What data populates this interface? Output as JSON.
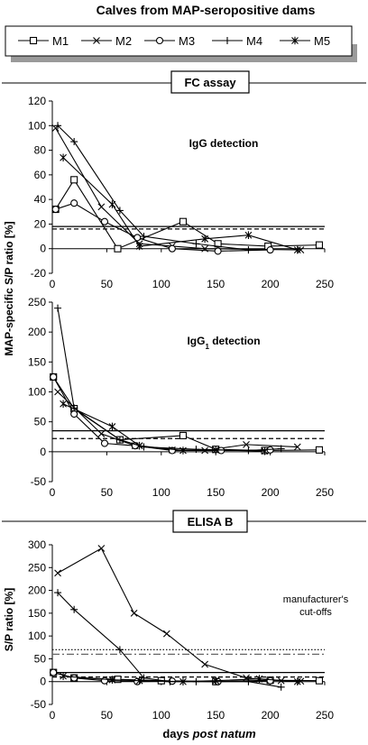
{
  "figure_title": "Calves from MAP-seropositive dams",
  "legend": {
    "entries": [
      {
        "name": "M1",
        "marker": "square"
      },
      {
        "name": "M2",
        "marker": "x"
      },
      {
        "name": "M3",
        "marker": "circle"
      },
      {
        "name": "M4",
        "marker": "plus"
      },
      {
        "name": "M5",
        "marker": "star"
      }
    ]
  },
  "sections": {
    "fc": "FC assay",
    "elisa": "ELISA B"
  },
  "ylabel_shared": "MAP-specific S/P ratio [%]",
  "xlabel_prefix": "days ",
  "xlabel_italic": "post natum",
  "annotation_cutoffs_line1": "manufacturer's",
  "annotation_cutoffs_line2": "cut-offs",
  "chart_data": [
    {
      "type": "line",
      "title": "IgG detection",
      "xlabel": "",
      "ylabel": "",
      "xlim": [
        0,
        250
      ],
      "ylim": [
        -20,
        120
      ],
      "xticks": [
        0,
        50,
        100,
        150,
        200,
        250
      ],
      "yticks": [
        -20,
        0,
        20,
        40,
        60,
        80,
        100,
        120
      ],
      "grid": false,
      "series": [
        {
          "name": "M1",
          "marker": "square",
          "points": [
            [
              3,
              32
            ],
            [
              20,
              56
            ],
            [
              60,
              0
            ],
            [
              120,
              22
            ],
            [
              152,
              4
            ],
            [
              198,
              2
            ],
            [
              245,
              3
            ]
          ]
        },
        {
          "name": "M2",
          "marker": "x",
          "points": [
            [
              3,
              98
            ],
            [
              45,
              34
            ],
            [
              80,
              4
            ],
            [
              110,
              2
            ],
            [
              140,
              0
            ],
            [
              228,
              -1
            ]
          ]
        },
        {
          "name": "M3",
          "marker": "circle",
          "points": [
            [
              3,
              32
            ],
            [
              20,
              37
            ],
            [
              48,
              22
            ],
            [
              78,
              9
            ],
            [
              110,
              0
            ],
            [
              152,
              -2
            ],
            [
              200,
              -1
            ]
          ]
        },
        {
          "name": "M4",
          "marker": "plus",
          "points": [
            [
              5,
              100
            ],
            [
              20,
              87
            ],
            [
              62,
              31
            ],
            [
              84,
              10
            ],
            [
              132,
              4
            ],
            [
              180,
              -1
            ]
          ]
        },
        {
          "name": "M5",
          "marker": "star",
          "points": [
            [
              10,
              74
            ],
            [
              55,
              36
            ],
            [
              80,
              2
            ],
            [
              140,
              8
            ],
            [
              180,
              11
            ],
            [
              225,
              -1
            ]
          ]
        }
      ],
      "cutoff_lines": [
        {
          "style": "solid",
          "y": 18
        },
        {
          "style": "dashed",
          "y": 16
        }
      ]
    },
    {
      "type": "line",
      "title": "IgG1 detection",
      "xlabel": "",
      "ylabel": "",
      "xlim": [
        0,
        250
      ],
      "ylim": [
        -50,
        250
      ],
      "xticks": [
        0,
        50,
        100,
        150,
        200,
        250
      ],
      "yticks": [
        -50,
        0,
        50,
        100,
        150,
        200,
        250
      ],
      "grid": false,
      "series": [
        {
          "name": "M1",
          "marker": "square",
          "points": [
            [
              1,
              125
            ],
            [
              20,
              72
            ],
            [
              62,
              20
            ],
            [
              120,
              27
            ],
            [
              150,
              4
            ],
            [
              195,
              2
            ],
            [
              245,
              3
            ]
          ]
        },
        {
          "name": "M2",
          "marker": "x",
          "points": [
            [
              5,
              100
            ],
            [
              45,
              30
            ],
            [
              76,
              10
            ],
            [
              110,
              3
            ],
            [
              140,
              2
            ],
            [
              178,
              12
            ],
            [
              225,
              8
            ]
          ]
        },
        {
          "name": "M3",
          "marker": "circle",
          "points": [
            [
              1,
              125
            ],
            [
              20,
              63
            ],
            [
              48,
              14
            ],
            [
              76,
              10
            ],
            [
              110,
              2
            ],
            [
              155,
              2
            ],
            [
              200,
              3
            ]
          ]
        },
        {
          "name": "M4",
          "marker": "plus",
          "points": [
            [
              5,
              240
            ],
            [
              20,
              73
            ],
            [
              62,
              20
            ],
            [
              84,
              8
            ],
            [
              132,
              4
            ],
            [
              180,
              2
            ],
            [
              210,
              5
            ]
          ]
        },
        {
          "name": "M5",
          "marker": "star",
          "points": [
            [
              10,
              80
            ],
            [
              55,
              42
            ],
            [
              80,
              10
            ],
            [
              120,
              2
            ],
            [
              150,
              3
            ],
            [
              195,
              1
            ]
          ]
        }
      ],
      "cutoff_lines": [
        {
          "style": "solid",
          "y": 35
        },
        {
          "style": "dashed",
          "y": 22
        }
      ]
    },
    {
      "type": "line",
      "title": "",
      "xlabel": "days post natum",
      "ylabel": "S/P ratio [%]",
      "xlim": [
        0,
        250
      ],
      "ylim": [
        -50,
        300
      ],
      "xticks": [
        0,
        50,
        100,
        150,
        200,
        250
      ],
      "yticks": [
        -50,
        0,
        50,
        100,
        150,
        200,
        250,
        300
      ],
      "grid": false,
      "series": [
        {
          "name": "M1",
          "marker": "square",
          "points": [
            [
              1,
              20
            ],
            [
              20,
              8
            ],
            [
              60,
              5
            ],
            [
              100,
              2
            ],
            [
              150,
              0
            ],
            [
              200,
              3
            ],
            [
              245,
              2
            ]
          ]
        },
        {
          "name": "M2",
          "marker": "x",
          "points": [
            [
              5,
              238
            ],
            [
              45,
              292
            ],
            [
              75,
              150
            ],
            [
              105,
              105
            ],
            [
              140,
              38
            ],
            [
              178,
              8
            ],
            [
              210,
              2
            ],
            [
              228,
              1
            ]
          ]
        },
        {
          "name": "M3",
          "marker": "circle",
          "points": [
            [
              1,
              20
            ],
            [
              20,
              8
            ],
            [
              48,
              2
            ],
            [
              78,
              0
            ],
            [
              110,
              1
            ],
            [
              152,
              0
            ],
            [
              200,
              2
            ]
          ]
        },
        {
          "name": "M4",
          "marker": "plus",
          "points": [
            [
              5,
              195
            ],
            [
              20,
              158
            ],
            [
              62,
              70
            ],
            [
              84,
              8
            ],
            [
              108,
              0
            ],
            [
              132,
              0
            ],
            [
              180,
              0
            ],
            [
              210,
              -12
            ]
          ]
        },
        {
          "name": "M5",
          "marker": "star",
          "points": [
            [
              10,
              12
            ],
            [
              55,
              4
            ],
            [
              80,
              2
            ],
            [
              120,
              0
            ],
            [
              150,
              2
            ],
            [
              190,
              6
            ],
            [
              225,
              0
            ]
          ]
        }
      ],
      "cutoff_lines": [
        {
          "style": "dotted",
          "y": 70
        },
        {
          "style": "dashdot",
          "y": 60
        },
        {
          "style": "solid",
          "y": 20
        },
        {
          "style": "dashed",
          "y": 10
        }
      ]
    }
  ]
}
